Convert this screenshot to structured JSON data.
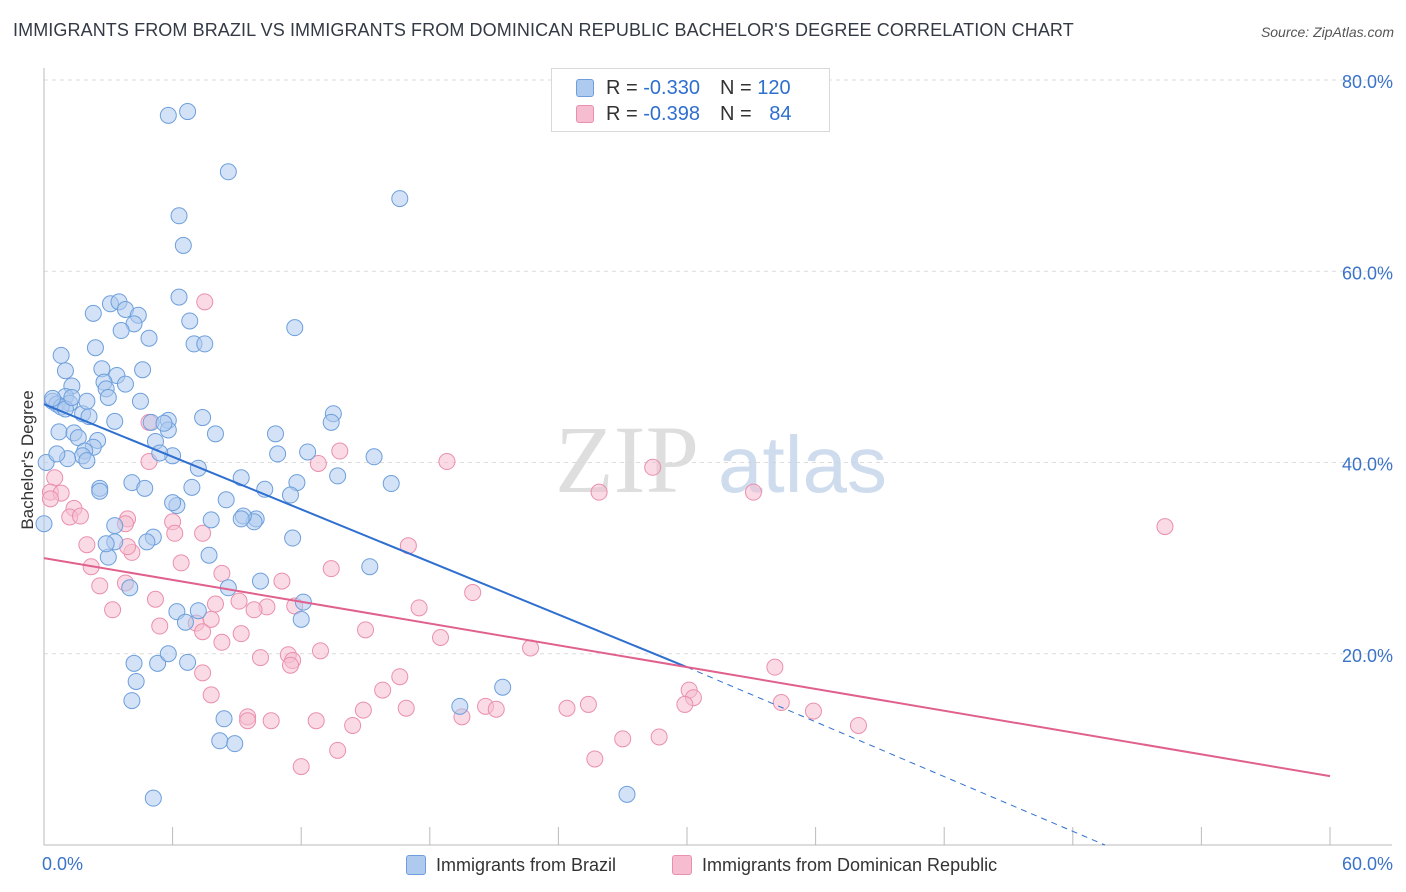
{
  "title": "IMMIGRANTS FROM BRAZIL VS IMMIGRANTS FROM DOMINICAN REPUBLIC BACHELOR'S DEGREE CORRELATION CHART",
  "source": "Source: ZipAtlas.com",
  "watermark": {
    "zip": "ZIP",
    "atlas": "atlas"
  },
  "legend": {
    "rows": [
      {
        "r_label": "R =",
        "r_value": "-0.330",
        "n_label": "N =",
        "n_value": "120"
      },
      {
        "r_label": "R =",
        "r_value": "-0.398",
        "n_label": "N =",
        "n_value": "84"
      }
    ]
  },
  "colors": {
    "brazil_fill": "#aecbef",
    "brazil_stroke": "#6d9fdc",
    "brazil_line": "#2e6fd0",
    "dr_fill": "#f6bdd0",
    "dr_stroke": "#ea8fae",
    "dr_line": "#e0608e",
    "tick_text": "#3b73c9",
    "grid": "#dcdcdc"
  },
  "chart_data": {
    "type": "scatter",
    "title": "IMMIGRANTS FROM BRAZIL VS IMMIGRANTS FROM DOMINICAN REPUBLIC BACHELOR'S DEGREE CORRELATION CHART",
    "xlabel": "",
    "ylabel": "Bachelor's Degree",
    "xlim": [
      0,
      60
    ],
    "ylim": [
      0,
      80
    ],
    "x_tick_labels": [
      "0.0%",
      "60.0%"
    ],
    "y_ticks": [
      20,
      40,
      60,
      80
    ],
    "y_tick_labels": [
      "20.0%",
      "40.0%",
      "60.0%",
      "80.0%"
    ],
    "legend_position": "bottom",
    "series": [
      {
        "name": "Immigrants from Brazil",
        "R": -0.33,
        "N": 120,
        "trend": {
          "x0": 0,
          "y0": 46.1,
          "x_solid_end": 30.0,
          "y_solid_end": 18.6,
          "x1": 49.5,
          "y1": 0
        },
        "points": [
          [
            5.8,
            76.3
          ],
          [
            6.7,
            76.7
          ],
          [
            8.6,
            70.4
          ],
          [
            16.6,
            67.6
          ],
          [
            6.3,
            65.8
          ],
          [
            6.5,
            62.7
          ],
          [
            6.3,
            57.3
          ],
          [
            3.1,
            56.6
          ],
          [
            3.5,
            56.8
          ],
          [
            2.3,
            55.6
          ],
          [
            3.8,
            56.0
          ],
          [
            4.4,
            55.4
          ],
          [
            4.2,
            54.5
          ],
          [
            3.6,
            53.8
          ],
          [
            4.9,
            53.0
          ],
          [
            6.8,
            54.8
          ],
          [
            11.7,
            54.1
          ],
          [
            7.0,
            52.4
          ],
          [
            7.5,
            52.4
          ],
          [
            2.4,
            52.0
          ],
          [
            0.8,
            51.2
          ],
          [
            2.7,
            49.8
          ],
          [
            4.6,
            49.7
          ],
          [
            3.4,
            49.1
          ],
          [
            1.0,
            49.6
          ],
          [
            2.8,
            48.4
          ],
          [
            3.8,
            48.2
          ],
          [
            1.3,
            48.0
          ],
          [
            2.9,
            47.7
          ],
          [
            1.0,
            46.9
          ],
          [
            3.0,
            46.8
          ],
          [
            4.5,
            46.4
          ],
          [
            0.4,
            46.4
          ],
          [
            0.6,
            46.1
          ],
          [
            1.2,
            46.2
          ],
          [
            0.8,
            45.8
          ],
          [
            1.0,
            45.6
          ],
          [
            1.8,
            45.1
          ],
          [
            2.1,
            44.8
          ],
          [
            7.4,
            44.7
          ],
          [
            13.5,
            45.1
          ],
          [
            5.0,
            44.2
          ],
          [
            5.8,
            44.4
          ],
          [
            3.3,
            44.3
          ],
          [
            5.8,
            43.4
          ],
          [
            0.7,
            43.2
          ],
          [
            1.4,
            43.1
          ],
          [
            10.8,
            43.0
          ],
          [
            8.0,
            43.0
          ],
          [
            1.6,
            42.6
          ],
          [
            5.2,
            42.2
          ],
          [
            2.5,
            42.3
          ],
          [
            2.3,
            41.6
          ],
          [
            1.9,
            41.2
          ],
          [
            1.8,
            40.7
          ],
          [
            6.0,
            40.7
          ],
          [
            5.4,
            41.0
          ],
          [
            10.9,
            40.9
          ],
          [
            12.3,
            41.1
          ],
          [
            15.4,
            40.6
          ],
          [
            1.1,
            40.4
          ],
          [
            2.0,
            40.2
          ],
          [
            0.1,
            40.0
          ],
          [
            7.2,
            39.4
          ],
          [
            13.7,
            38.6
          ],
          [
            9.2,
            38.4
          ],
          [
            4.1,
            37.9
          ],
          [
            11.8,
            37.9
          ],
          [
            16.2,
            37.8
          ],
          [
            2.6,
            37.3
          ],
          [
            4.7,
            37.3
          ],
          [
            6.9,
            37.4
          ],
          [
            2.6,
            37.0
          ],
          [
            11.5,
            36.6
          ],
          [
            8.5,
            36.1
          ],
          [
            6.2,
            35.5
          ],
          [
            9.9,
            34.1
          ],
          [
            7.8,
            34.0
          ],
          [
            9.8,
            33.8
          ],
          [
            0.0,
            33.6
          ],
          [
            3.3,
            33.4
          ],
          [
            5.1,
            32.2
          ],
          [
            11.6,
            32.1
          ],
          [
            4.8,
            31.7
          ],
          [
            3.3,
            31.7
          ],
          [
            3.0,
            30.1
          ],
          [
            7.7,
            30.3
          ],
          [
            15.2,
            29.1
          ],
          [
            10.1,
            27.6
          ],
          [
            8.6,
            26.9
          ],
          [
            4.0,
            26.9
          ],
          [
            12.1,
            25.4
          ],
          [
            6.2,
            24.4
          ],
          [
            7.2,
            24.5
          ],
          [
            12.0,
            23.6
          ],
          [
            6.6,
            23.3
          ],
          [
            4.2,
            19.0
          ],
          [
            5.3,
            19.0
          ],
          [
            5.8,
            20.0
          ],
          [
            21.4,
            16.5
          ],
          [
            4.3,
            17.1
          ],
          [
            8.4,
            13.2
          ],
          [
            19.4,
            14.5
          ],
          [
            8.2,
            10.9
          ],
          [
            8.9,
            10.6
          ],
          [
            4.1,
            15.1
          ],
          [
            6.0,
            35.8
          ],
          [
            27.2,
            5.3
          ],
          [
            5.1,
            4.9
          ],
          [
            0.4,
            46.7
          ],
          [
            1.3,
            46.8
          ],
          [
            2.0,
            46.4
          ],
          [
            5.6,
            44.1
          ],
          [
            9.3,
            34.4
          ],
          [
            9.2,
            34.1
          ],
          [
            10.3,
            37.2
          ],
          [
            0.6,
            40.9
          ],
          [
            6.7,
            19.1
          ],
          [
            2.9,
            31.5
          ],
          [
            13.4,
            44.2
          ]
        ]
      },
      {
        "name": "Immigrants from Dominican Republic",
        "R": -0.398,
        "N": 84,
        "trend": {
          "x0": 0,
          "y0": 30.0,
          "x1": 60,
          "y1": 7.2
        },
        "points": [
          [
            7.5,
            56.8
          ],
          [
            13.8,
            41.2
          ],
          [
            12.8,
            39.9
          ],
          [
            4.9,
            44.2
          ],
          [
            18.8,
            40.1
          ],
          [
            28.4,
            39.5
          ],
          [
            25.9,
            36.9
          ],
          [
            33.1,
            36.9
          ],
          [
            52.3,
            33.3
          ],
          [
            4.9,
            40.1
          ],
          [
            0.5,
            38.4
          ],
          [
            0.3,
            36.9
          ],
          [
            0.8,
            36.8
          ],
          [
            1.4,
            35.2
          ],
          [
            1.2,
            34.3
          ],
          [
            1.7,
            34.4
          ],
          [
            3.9,
            34.1
          ],
          [
            6.0,
            33.8
          ],
          [
            7.4,
            32.6
          ],
          [
            6.1,
            32.6
          ],
          [
            17.0,
            31.3
          ],
          [
            2.0,
            31.4
          ],
          [
            4.1,
            30.6
          ],
          [
            3.9,
            31.2
          ],
          [
            2.2,
            29.1
          ],
          [
            13.4,
            28.9
          ],
          [
            8.3,
            28.4
          ],
          [
            3.8,
            27.4
          ],
          [
            11.1,
            27.6
          ],
          [
            2.6,
            27.1
          ],
          [
            20.0,
            26.4
          ],
          [
            5.2,
            25.7
          ],
          [
            9.1,
            25.5
          ],
          [
            8.0,
            25.2
          ],
          [
            10.4,
            24.9
          ],
          [
            11.7,
            25.0
          ],
          [
            17.5,
            24.8
          ],
          [
            9.8,
            24.6
          ],
          [
            7.1,
            23.2
          ],
          [
            5.4,
            22.9
          ],
          [
            7.4,
            22.3
          ],
          [
            15.0,
            22.5
          ],
          [
            18.5,
            21.7
          ],
          [
            8.3,
            21.2
          ],
          [
            12.9,
            20.3
          ],
          [
            22.7,
            20.6
          ],
          [
            11.4,
            19.9
          ],
          [
            10.1,
            19.6
          ],
          [
            11.6,
            19.3
          ],
          [
            11.5,
            18.8
          ],
          [
            7.4,
            18.0
          ],
          [
            16.6,
            17.6
          ],
          [
            34.1,
            18.6
          ],
          [
            30.1,
            16.2
          ],
          [
            15.8,
            16.2
          ],
          [
            7.8,
            15.7
          ],
          [
            30.3,
            15.4
          ],
          [
            34.4,
            14.9
          ],
          [
            25.4,
            14.7
          ],
          [
            29.9,
            14.7
          ],
          [
            20.6,
            14.5
          ],
          [
            21.1,
            14.2
          ],
          [
            24.4,
            14.3
          ],
          [
            35.9,
            14.0
          ],
          [
            16.9,
            14.3
          ],
          [
            14.9,
            14.1
          ],
          [
            9.5,
            13.4
          ],
          [
            10.6,
            13.0
          ],
          [
            9.5,
            13.0
          ],
          [
            12.7,
            13.0
          ],
          [
            14.4,
            12.5
          ],
          [
            38.0,
            12.5
          ],
          [
            19.5,
            13.4
          ],
          [
            28.7,
            11.3
          ],
          [
            27.0,
            11.1
          ],
          [
            13.7,
            9.9
          ],
          [
            25.7,
            9.0
          ],
          [
            12.0,
            8.2
          ],
          [
            0.3,
            36.2
          ],
          [
            3.8,
            33.6
          ],
          [
            7.8,
            23.6
          ],
          [
            6.4,
            29.5
          ],
          [
            9.2,
            22.1
          ],
          [
            3.2,
            24.6
          ]
        ]
      }
    ]
  },
  "bottom_legend": [
    "Immigrants from Brazil",
    "Immigrants from Dominican Republic"
  ]
}
